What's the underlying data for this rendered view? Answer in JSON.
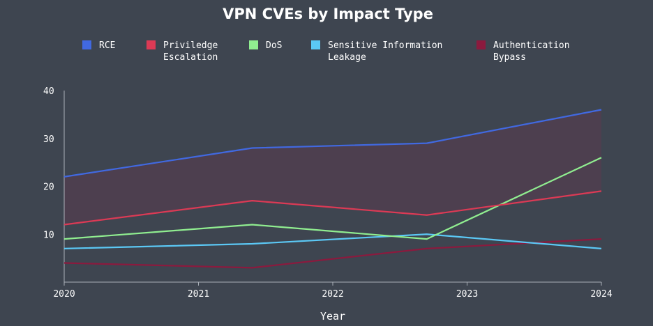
{
  "chart_data": {
    "type": "line",
    "title": "VPN CVEs by Impact Type",
    "xlabel": "Year",
    "ylabel": "",
    "x_ticks": [
      "2020",
      "2021",
      "2022",
      "2023",
      "2024"
    ],
    "y_ticks": [
      "10",
      "20",
      "30",
      "40"
    ],
    "x_range": [
      2020,
      2024
    ],
    "ylim": [
      0,
      40
    ],
    "legend_position": "top",
    "grid": false,
    "shaded_band": "area between the RCE line and the Priviledge Escalation line",
    "series": [
      {
        "name": "RCE",
        "legend_lines": [
          "RCE"
        ],
        "color": "#4169e1",
        "x": [
          2020,
          2021.4,
          2022.7,
          2024
        ],
        "values": [
          22,
          28,
          29,
          36
        ]
      },
      {
        "name": "Priviledge Escalation",
        "legend_lines": [
          "Priviledge",
          "Escalation"
        ],
        "color": "#dc3a55",
        "x": [
          2020,
          2021.4,
          2022.7,
          2024
        ],
        "values": [
          12,
          17,
          14,
          19
        ]
      },
      {
        "name": "DoS",
        "legend_lines": [
          "DoS"
        ],
        "color": "#90ee90",
        "x": [
          2020,
          2021.4,
          2022.7,
          2024
        ],
        "values": [
          9,
          12,
          9,
          26
        ]
      },
      {
        "name": "Sensitive Information Leakage",
        "legend_lines": [
          "Sensitive Information",
          "Leakage"
        ],
        "color": "#5bc8f5",
        "x": [
          2020,
          2021.4,
          2022.7,
          2024
        ],
        "values": [
          7,
          8,
          10,
          7
        ]
      },
      {
        "name": "Authentication Bypass",
        "legend_lines": [
          "Authentication",
          "Bypass"
        ],
        "color": "#8b1a3e",
        "x": [
          2020,
          2021.4,
          2022.7,
          2024
        ],
        "values": [
          4,
          3,
          7,
          9
        ]
      }
    ]
  }
}
